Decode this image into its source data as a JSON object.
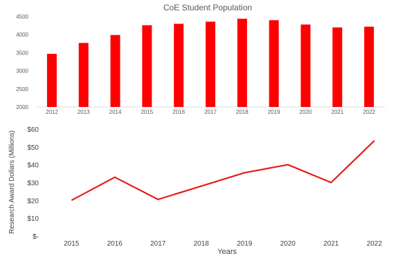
{
  "chart_data": [
    {
      "type": "bar",
      "title": "CoE Student Population",
      "xlabel": "",
      "ylabel": "",
      "categories": [
        "2012",
        "2013",
        "2014",
        "2015",
        "2016",
        "2017",
        "2018",
        "2019",
        "2020",
        "2021",
        "2022"
      ],
      "values": [
        3470,
        3770,
        3990,
        4260,
        4300,
        4360,
        4440,
        4400,
        4280,
        4200,
        4220
      ],
      "ylim": [
        2000,
        4500
      ],
      "yticks": [
        "2000",
        "2500",
        "3000",
        "3500",
        "4000",
        "4500"
      ],
      "color": "#ff0000",
      "grid": false
    },
    {
      "type": "line",
      "title": "",
      "xlabel": "Years",
      "ylabel": "Research Award Dollars (Millions)",
      "categories": [
        "2015",
        "2016",
        "2017",
        "2018",
        "2019",
        "2020",
        "2021",
        "2022"
      ],
      "values": [
        20,
        33,
        20.5,
        28,
        35.5,
        40,
        30,
        53.5
      ],
      "ylim": [
        0,
        60
      ],
      "yticks": [
        "$-",
        "$10",
        "$20",
        "$30",
        "$40",
        "$50",
        "$60"
      ],
      "color": "#e51b1b",
      "grid": false
    }
  ]
}
